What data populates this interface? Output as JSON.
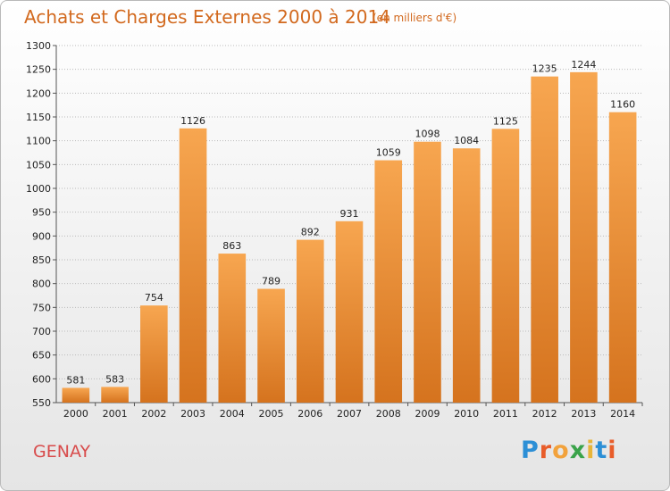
{
  "title": "Achats et Charges Externes 2000 à 2014",
  "subtitle": "(en milliers d'€)",
  "city": "GENAY",
  "logo": {
    "letters": [
      "P",
      "r",
      "o",
      "x",
      "i",
      "t",
      "i"
    ],
    "colors": [
      "#2c8fd6",
      "#e85d2a",
      "#f2a23c",
      "#3aa34a",
      "#e8b53a",
      "#2c8fd6",
      "#e85d2a"
    ]
  },
  "colors": {
    "bar_top": "#f7a650",
    "bar_bottom": "#d5731e",
    "title": "#d2691e",
    "city": "#d84b4b",
    "grid": "#bbbbbb"
  },
  "chart_data": {
    "type": "bar",
    "title": "Achats et Charges Externes 2000 à 2014",
    "subtitle": "(en milliers d'€)",
    "categories": [
      "2000",
      "2001",
      "2002",
      "2003",
      "2004",
      "2005",
      "2006",
      "2007",
      "2008",
      "2009",
      "2010",
      "2011",
      "2012",
      "2013",
      "2014"
    ],
    "values": [
      581,
      583,
      754,
      1126,
      863,
      789,
      892,
      931,
      1059,
      1098,
      1084,
      1125,
      1235,
      1244,
      1160
    ],
    "value_labels": [
      "581",
      "583",
      "754",
      "1126",
      "863",
      "789",
      "892",
      "931",
      "1059",
      "1098",
      "1084",
      "1125",
      "1235",
      "1244",
      "1160"
    ],
    "xlabel": "",
    "ylabel": "",
    "ylim": [
      550,
      1300
    ],
    "yticks": [
      550,
      600,
      650,
      700,
      750,
      800,
      850,
      900,
      950,
      1000,
      1050,
      1100,
      1150,
      1200,
      1250,
      1300
    ],
    "ytick_labels": [
      "550",
      "600",
      "650",
      "700",
      "750",
      "800",
      "850",
      "900",
      "950",
      "1000",
      "1050",
      "1100",
      "1150",
      "1200",
      "1250",
      "1300"
    ],
    "grid": true,
    "legend": "none"
  }
}
